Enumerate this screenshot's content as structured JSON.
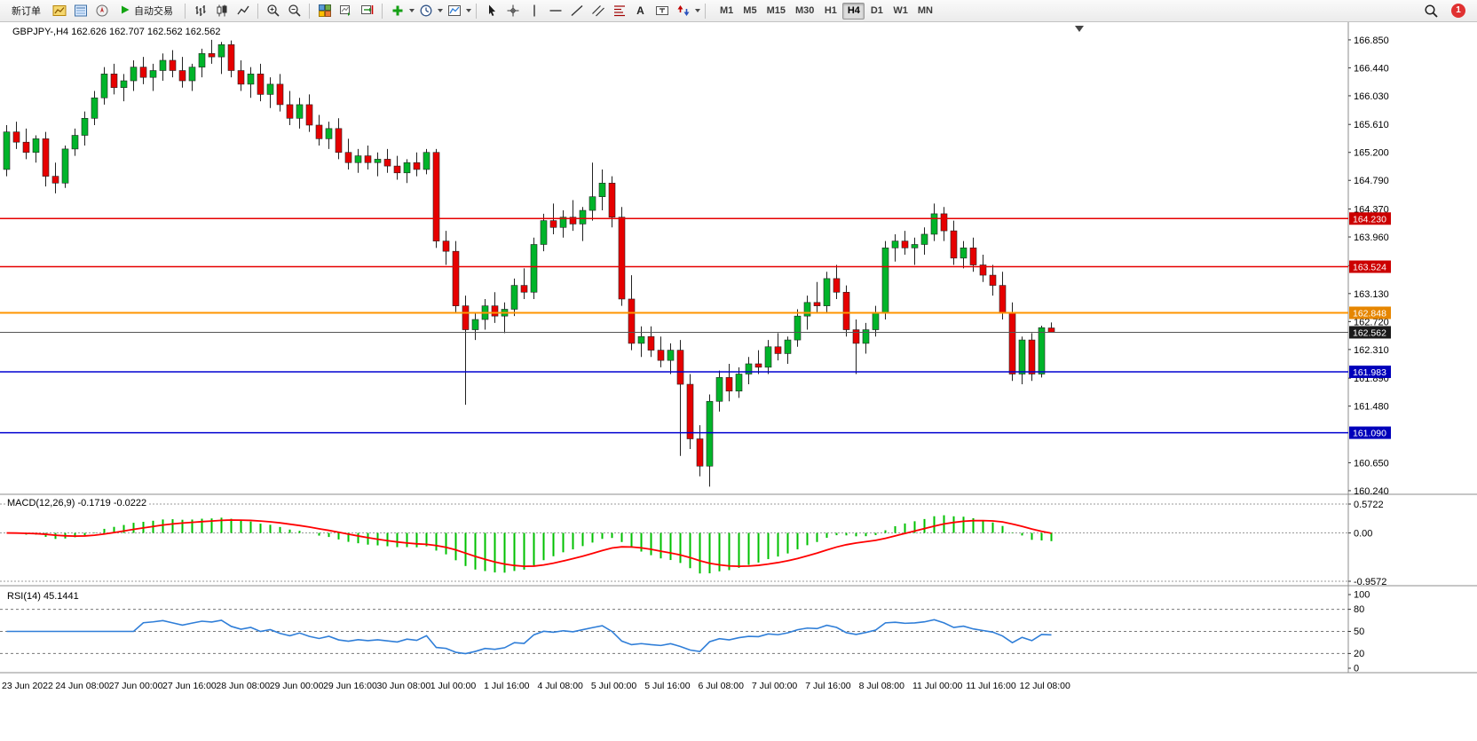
{
  "toolbar": {
    "new_order_label": "新订单",
    "autotrade_label": "自动交易",
    "text_tool_label": "A",
    "label_tool_label": "T",
    "timeframes": [
      {
        "label": "M1"
      },
      {
        "label": "M5"
      },
      {
        "label": "M15"
      },
      {
        "label": "M30"
      },
      {
        "label": "H1"
      },
      {
        "label": "H4"
      },
      {
        "label": "D1"
      },
      {
        "label": "W1"
      },
      {
        "label": "MN"
      }
    ],
    "active_timeframe": "H4",
    "notification_count": "1"
  },
  "chart_data": {
    "type": "candlestick",
    "symbol": "GBPJPY-",
    "timeframe": "H4",
    "title": "GBPJPY-,H4  162.626 162.707 162.562 162.562",
    "ohlc": {
      "open": 162.626,
      "high": 162.707,
      "low": 162.562,
      "close": 162.562
    },
    "colors": {
      "up": "#00b42a",
      "down": "#e60000",
      "wick": "#222222",
      "macd_hist": "#00c000",
      "macd_signal": "#ff0000",
      "rsi_line": "#2f7ed8",
      "red_line": "#e60000",
      "orange_line": "#ff9500",
      "blue_line": "#0000d0"
    },
    "price_axis": {
      "max": 166.94,
      "min": 160.2,
      "labels": [
        "166.850",
        "166.440",
        "166.030",
        "165.610",
        "165.200",
        "164.790",
        "164.370",
        "163.960",
        "163.540",
        "163.130",
        "162.720",
        "162.310",
        "161.890",
        "161.480",
        "160.650",
        "160.240"
      ]
    },
    "x_labels": [
      "23 Jun 2022",
      "24 Jun 08:00",
      "27 Jun 00:00",
      "27 Jun 16:00",
      "28 Jun 08:00",
      "29 Jun 00:00",
      "29 Jun 16:00",
      "30 Jun 08:00",
      "1 Jul 00:00",
      "1 Jul 16:00",
      "4 Jul 08:00",
      "5 Jul 00:00",
      "5 Jul 16:00",
      "6 Jul 08:00",
      "7 Jul 00:00",
      "7 Jul 16:00",
      "8 Jul 08:00",
      "11 Jul 00:00",
      "11 Jul 16:00",
      "12 Jul 08:00"
    ],
    "hlines": [
      {
        "price": 164.23,
        "label": "164.230",
        "color": "#e60000",
        "label_bg": "#cc0000",
        "width": 1.5
      },
      {
        "price": 163.524,
        "label": "163.524",
        "color": "#e60000",
        "label_bg": "#cc0000",
        "width": 1.5
      },
      {
        "price": 162.848,
        "label": "162.848",
        "color": "#ff9500",
        "label_bg": "#e68600",
        "width": 2
      },
      {
        "price": 162.562,
        "label": "162.562",
        "color": "#555555",
        "label_bg": "#1a1a1a",
        "width": 1
      },
      {
        "price": 161.983,
        "label": "161.983",
        "color": "#0000d0",
        "label_bg": "#0000bb",
        "width": 1.5
      },
      {
        "price": 161.09,
        "label": "161.090",
        "color": "#0000d0",
        "label_bg": "#0000bb",
        "width": 1.5
      }
    ],
    "candles": [
      [
        164.95,
        165.6,
        164.85,
        165.5
      ],
      [
        165.5,
        165.65,
        165.25,
        165.35
      ],
      [
        165.35,
        165.55,
        165.1,
        165.2
      ],
      [
        165.2,
        165.45,
        165.05,
        165.4
      ],
      [
        165.4,
        165.5,
        164.7,
        164.85
      ],
      [
        164.85,
        165.05,
        164.6,
        164.75
      ],
      [
        164.75,
        165.3,
        164.68,
        165.25
      ],
      [
        165.25,
        165.55,
        165.15,
        165.45
      ],
      [
        165.45,
        165.8,
        165.3,
        165.7
      ],
      [
        165.7,
        166.1,
        165.6,
        166.0
      ],
      [
        166.0,
        166.45,
        165.9,
        166.35
      ],
      [
        166.35,
        166.5,
        166.05,
        166.15
      ],
      [
        166.15,
        166.35,
        165.95,
        166.25
      ],
      [
        166.25,
        166.55,
        166.1,
        166.45
      ],
      [
        166.45,
        166.6,
        166.2,
        166.3
      ],
      [
        166.3,
        166.5,
        166.1,
        166.4
      ],
      [
        166.4,
        166.65,
        166.25,
        166.55
      ],
      [
        166.55,
        166.7,
        166.3,
        166.4
      ],
      [
        166.4,
        166.6,
        166.15,
        166.25
      ],
      [
        166.25,
        166.5,
        166.1,
        166.45
      ],
      [
        166.45,
        166.72,
        166.3,
        166.65
      ],
      [
        166.65,
        166.85,
        166.5,
        166.6
      ],
      [
        166.6,
        166.82,
        166.35,
        166.78
      ],
      [
        166.78,
        166.84,
        166.3,
        166.4
      ],
      [
        166.4,
        166.55,
        166.1,
        166.2
      ],
      [
        166.2,
        166.45,
        166.0,
        166.35
      ],
      [
        166.35,
        166.5,
        165.95,
        166.05
      ],
      [
        166.05,
        166.3,
        165.85,
        166.2
      ],
      [
        166.2,
        166.35,
        165.8,
        165.9
      ],
      [
        165.9,
        166.1,
        165.6,
        165.7
      ],
      [
        165.7,
        166.0,
        165.55,
        165.9
      ],
      [
        165.9,
        166.05,
        165.5,
        165.6
      ],
      [
        165.6,
        165.75,
        165.3,
        165.4
      ],
      [
        165.4,
        165.65,
        165.25,
        165.55
      ],
      [
        165.55,
        165.7,
        165.1,
        165.2
      ],
      [
        165.2,
        165.4,
        164.95,
        165.05
      ],
      [
        165.05,
        165.25,
        164.9,
        165.15
      ],
      [
        165.15,
        165.3,
        164.95,
        165.05
      ],
      [
        165.05,
        165.2,
        164.85,
        165.1
      ],
      [
        165.1,
        165.25,
        164.9,
        165.0
      ],
      [
        165.0,
        165.15,
        164.8,
        164.9
      ],
      [
        164.9,
        165.1,
        164.75,
        165.05
      ],
      [
        165.05,
        165.2,
        164.85,
        164.95
      ],
      [
        164.95,
        165.25,
        164.88,
        165.2
      ],
      [
        165.2,
        165.25,
        163.8,
        163.9
      ],
      [
        163.9,
        164.05,
        163.55,
        163.75
      ],
      [
        163.75,
        163.9,
        162.85,
        162.95
      ],
      [
        162.95,
        163.1,
        161.5,
        162.6
      ],
      [
        162.6,
        162.85,
        162.45,
        162.75
      ],
      [
        162.75,
        163.05,
        162.6,
        162.95
      ],
      [
        162.95,
        163.15,
        162.7,
        162.8
      ],
      [
        162.8,
        163.0,
        162.55,
        162.9
      ],
      [
        162.9,
        163.35,
        162.8,
        163.25
      ],
      [
        163.25,
        163.5,
        163.05,
        163.15
      ],
      [
        163.15,
        163.95,
        163.05,
        163.85
      ],
      [
        163.85,
        164.3,
        163.75,
        164.2
      ],
      [
        164.2,
        164.45,
        164.0,
        164.1
      ],
      [
        164.1,
        164.35,
        163.95,
        164.25
      ],
      [
        164.25,
        164.5,
        164.05,
        164.15
      ],
      [
        164.15,
        164.4,
        163.9,
        164.35
      ],
      [
        164.35,
        165.05,
        164.2,
        164.55
      ],
      [
        164.55,
        164.95,
        164.35,
        164.75
      ],
      [
        164.75,
        164.85,
        164.1,
        164.25
      ],
      [
        164.25,
        164.4,
        162.95,
        163.05
      ],
      [
        163.05,
        163.4,
        162.3,
        162.4
      ],
      [
        162.4,
        162.65,
        162.2,
        162.5
      ],
      [
        162.5,
        162.65,
        162.2,
        162.3
      ],
      [
        162.3,
        162.5,
        162.05,
        162.15
      ],
      [
        162.15,
        162.4,
        161.95,
        162.3
      ],
      [
        162.3,
        162.45,
        160.75,
        161.8
      ],
      [
        161.8,
        161.95,
        160.85,
        161.0
      ],
      [
        161.0,
        161.2,
        160.45,
        160.6
      ],
      [
        160.6,
        161.65,
        160.3,
        161.55
      ],
      [
        161.55,
        162.0,
        161.4,
        161.9
      ],
      [
        161.9,
        162.1,
        161.55,
        161.7
      ],
      [
        161.7,
        162.05,
        161.6,
        161.95
      ],
      [
        161.95,
        162.2,
        161.8,
        162.1
      ],
      [
        162.1,
        162.3,
        161.95,
        162.05
      ],
      [
        162.05,
        162.45,
        161.95,
        162.35
      ],
      [
        162.35,
        162.55,
        162.15,
        162.25
      ],
      [
        162.25,
        162.5,
        162.1,
        162.45
      ],
      [
        162.45,
        162.9,
        162.35,
        162.8
      ],
      [
        162.8,
        163.1,
        162.6,
        163.0
      ],
      [
        163.0,
        163.3,
        162.85,
        162.95
      ],
      [
        162.95,
        163.45,
        162.85,
        163.35
      ],
      [
        163.35,
        163.55,
        163.05,
        163.15
      ],
      [
        163.15,
        163.25,
        162.5,
        162.6
      ],
      [
        162.6,
        162.75,
        161.95,
        162.4
      ],
      [
        162.4,
        162.7,
        162.25,
        162.6
      ],
      [
        162.6,
        162.95,
        162.5,
        162.85
      ],
      [
        162.85,
        163.9,
        162.75,
        163.8
      ],
      [
        163.8,
        164.0,
        163.6,
        163.9
      ],
      [
        163.9,
        164.05,
        163.7,
        163.8
      ],
      [
        163.8,
        163.95,
        163.55,
        163.85
      ],
      [
        163.85,
        164.1,
        163.7,
        164.0
      ],
      [
        164.0,
        164.45,
        163.9,
        164.3
      ],
      [
        164.3,
        164.4,
        163.9,
        164.05
      ],
      [
        164.05,
        164.2,
        163.55,
        163.65
      ],
      [
        163.65,
        163.9,
        163.5,
        163.8
      ],
      [
        163.8,
        163.95,
        163.45,
        163.55
      ],
      [
        163.55,
        163.7,
        163.3,
        163.4
      ],
      [
        163.4,
        163.55,
        163.1,
        163.25
      ],
      [
        163.25,
        163.45,
        162.75,
        162.85
      ],
      [
        162.85,
        163.0,
        161.85,
        161.95
      ],
      [
        161.95,
        162.5,
        161.8,
        162.45
      ],
      [
        162.45,
        162.55,
        161.85,
        161.95
      ],
      [
        161.95,
        162.66,
        161.9,
        162.63
      ],
      [
        162.626,
        162.707,
        162.562,
        162.562
      ]
    ],
    "macd": {
      "label": "MACD(12,26,9) -0.1719 -0.0222",
      "fast": 12,
      "slow": 26,
      "signal": 9,
      "value": -0.1719,
      "signal_value": -0.0222,
      "max": 0.5722,
      "min": -0.9572,
      "axis_labels": [
        "0.5722",
        "0.00",
        "-0.9572"
      ]
    },
    "rsi": {
      "label": "RSI(14) 45.1441",
      "period": 14,
      "value": 45.1441,
      "max": 100,
      "min": 0,
      "levels": [
        80,
        50,
        20
      ],
      "axis_labels": [
        "100",
        "80",
        "50",
        "20",
        "0"
      ]
    }
  }
}
